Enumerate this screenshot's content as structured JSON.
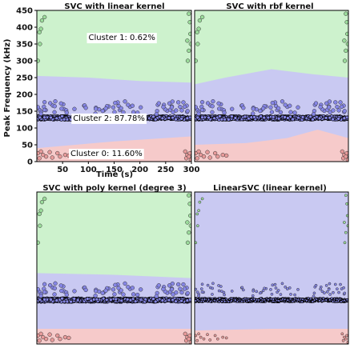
{
  "figure": {
    "ylabel": "Peak Frequency (kHz)",
    "xlabel": "Time (s)"
  },
  "colors": {
    "cluster0_region": "#f6caca",
    "cluster1_region": "#cdf2cd",
    "cluster2_region": "#c9c9f2",
    "cluster0_point": "#e79a9a",
    "cluster1_point": "#9bdb9b",
    "cluster2_point": "#8686e6",
    "point_edge": "#333333"
  },
  "chart_data": [
    {
      "type": "scatter",
      "title": "SVC with linear kernel",
      "xlim": [
        0,
        300
      ],
      "ylim": [
        0,
        450
      ],
      "xticks": [
        50,
        100,
        150,
        200,
        250,
        300
      ],
      "yticks": [
        0,
        50,
        100,
        150,
        200,
        250,
        300,
        350,
        400,
        450
      ],
      "annotations": [
        {
          "text": "Cluster 1: 0.62%",
          "x": 165,
          "y": 370
        },
        {
          "text": "Cluster 2: 87.78%",
          "x": 140,
          "y": 130
        },
        {
          "text": "Cluster 0: 11.60%",
          "x": 135,
          "y": 25
        }
      ],
      "boundaries": {
        "upper": [
          [
            0,
            255
          ],
          [
            100,
            250
          ],
          [
            200,
            240
          ],
          [
            300,
            235
          ]
        ],
        "lower": [
          [
            0,
            40
          ],
          [
            150,
            60
          ],
          [
            300,
            75
          ]
        ]
      }
    },
    {
      "type": "scatter",
      "title": "SVC with rbf kernel",
      "xlim": [
        0,
        300
      ],
      "ylim": [
        0,
        450
      ],
      "boundaries": {
        "upper": [
          [
            0,
            230
          ],
          [
            60,
            250
          ],
          [
            150,
            275
          ],
          [
            230,
            260
          ],
          [
            300,
            250
          ]
        ],
        "lower": [
          [
            0,
            50
          ],
          [
            100,
            55
          ],
          [
            180,
            70
          ],
          [
            240,
            95
          ],
          [
            300,
            70
          ]
        ]
      }
    },
    {
      "type": "scatter",
      "title": "SVC with poly kernel (degree 3)",
      "xlim": [
        0,
        300
      ],
      "ylim": [
        0,
        450
      ],
      "boundaries": {
        "upper": [
          [
            0,
            210
          ],
          [
            150,
            205
          ],
          [
            300,
            195
          ]
        ],
        "lower": [
          [
            0,
            45
          ],
          [
            150,
            45
          ],
          [
            300,
            45
          ]
        ]
      }
    },
    {
      "type": "scatter",
      "title": "LinearSVC (linear kernel)",
      "xlim": [
        0,
        300
      ],
      "ylim": [
        0,
        450
      ],
      "boundaries": {
        "upper": [
          [
            0,
            450
          ],
          [
            300,
            450
          ]
        ],
        "lower": [
          [
            0,
            40
          ],
          [
            150,
            45
          ],
          [
            300,
            45
          ]
        ]
      }
    }
  ]
}
